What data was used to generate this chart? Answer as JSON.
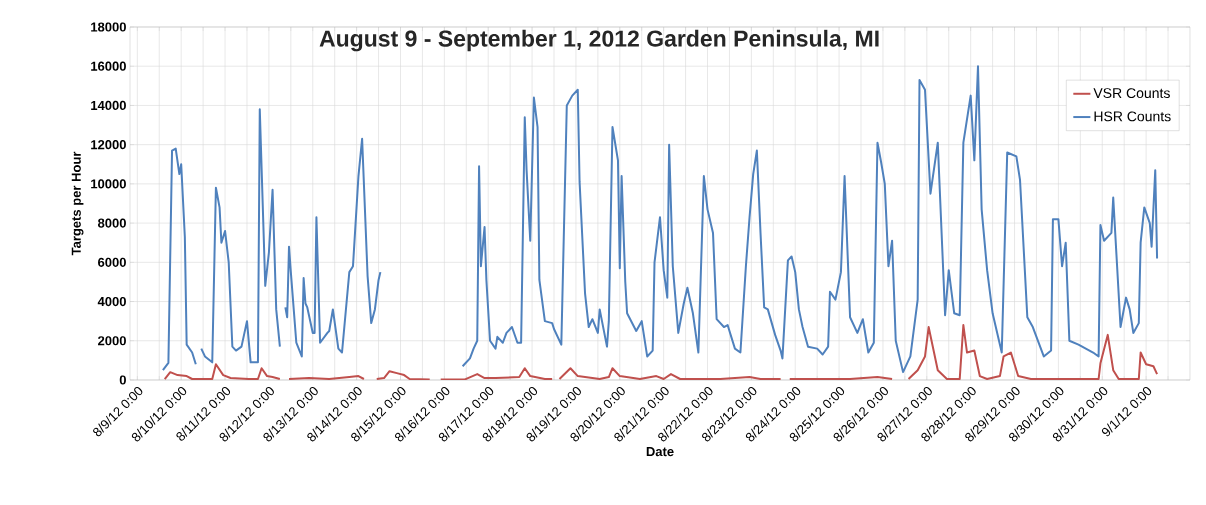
{
  "chart_data": {
    "type": "line",
    "title": "August 9 - September 1, 2012 Garden Peninsula, MI",
    "xlabel": "Date",
    "ylabel": "Targets per Hour",
    "xlim": [
      "2012-08-08T20:00",
      "2012-09-02T00:00"
    ],
    "ylim": [
      0,
      18000
    ],
    "yticks": [
      0,
      2000,
      4000,
      6000,
      8000,
      10000,
      12000,
      14000,
      16000,
      18000
    ],
    "xticks": [
      {
        "value": "2012-08-09T00:00",
        "label": "8/9/12 0:00"
      },
      {
        "value": "2012-08-09T12:00",
        "label": null
      },
      {
        "value": "2012-08-10T00:00",
        "label": "8/10/12 0:00"
      },
      {
        "value": "2012-08-10T12:00",
        "label": null
      },
      {
        "value": "2012-08-11T00:00",
        "label": "8/11/12 0:00"
      },
      {
        "value": "2012-08-11T12:00",
        "label": null
      },
      {
        "value": "2012-08-12T00:00",
        "label": "8/12/12 0:00"
      },
      {
        "value": "2012-08-12T12:00",
        "label": null
      },
      {
        "value": "2012-08-13T00:00",
        "label": "8/13/12 0:00"
      },
      {
        "value": "2012-08-13T12:00",
        "label": null
      },
      {
        "value": "2012-08-14T00:00",
        "label": "8/14/12 0:00"
      },
      {
        "value": "2012-08-14T12:00",
        "label": null
      },
      {
        "value": "2012-08-15T00:00",
        "label": "8/15/12 0:00"
      },
      {
        "value": "2012-08-15T12:00",
        "label": null
      },
      {
        "value": "2012-08-16T00:00",
        "label": "8/16/12 0:00"
      },
      {
        "value": "2012-08-16T12:00",
        "label": null
      },
      {
        "value": "2012-08-17T00:00",
        "label": "8/17/12 0:00"
      },
      {
        "value": "2012-08-17T12:00",
        "label": null
      },
      {
        "value": "2012-08-18T00:00",
        "label": "8/18/12 0:00"
      },
      {
        "value": "2012-08-18T12:00",
        "label": null
      },
      {
        "value": "2012-08-19T00:00",
        "label": "8/19/12 0:00"
      },
      {
        "value": "2012-08-19T12:00",
        "label": null
      },
      {
        "value": "2012-08-20T00:00",
        "label": "8/20/12 0:00"
      },
      {
        "value": "2012-08-20T12:00",
        "label": null
      },
      {
        "value": "2012-08-21T00:00",
        "label": "8/21/12 0:00"
      },
      {
        "value": "2012-08-21T12:00",
        "label": null
      },
      {
        "value": "2012-08-22T00:00",
        "label": "8/22/12 0:00"
      },
      {
        "value": "2012-08-22T12:00",
        "label": null
      },
      {
        "value": "2012-08-23T00:00",
        "label": "8/23/12 0:00"
      },
      {
        "value": "2012-08-23T12:00",
        "label": null
      },
      {
        "value": "2012-08-24T00:00",
        "label": "8/24/12 0:00"
      },
      {
        "value": "2012-08-24T12:00",
        "label": null
      },
      {
        "value": "2012-08-25T00:00",
        "label": "8/25/12 0:00"
      },
      {
        "value": "2012-08-25T12:00",
        "label": null
      },
      {
        "value": "2012-08-26T00:00",
        "label": "8/26/12 0:00"
      },
      {
        "value": "2012-08-26T12:00",
        "label": null
      },
      {
        "value": "2012-08-27T00:00",
        "label": "8/27/12 0:00"
      },
      {
        "value": "2012-08-27T12:00",
        "label": null
      },
      {
        "value": "2012-08-28T00:00",
        "label": "8/28/12 0:00"
      },
      {
        "value": "2012-08-28T12:00",
        "label": null
      },
      {
        "value": "2012-08-29T00:00",
        "label": "8/29/12 0:00"
      },
      {
        "value": "2012-08-29T12:00",
        "label": null
      },
      {
        "value": "2012-08-30T00:00",
        "label": "8/30/12 0:00"
      },
      {
        "value": "2012-08-30T12:00",
        "label": null
      },
      {
        "value": "2012-08-31T00:00",
        "label": "8/31/12 0:00"
      },
      {
        "value": "2012-08-31T12:00",
        "label": null
      },
      {
        "value": "2012-09-01T00:00",
        "label": "9/1/12 0:00"
      },
      {
        "value": "2012-09-01T12:00",
        "label": null
      }
    ],
    "grid": true,
    "legend": "top right",
    "marker": "none",
    "line_style": "solid",
    "series": [
      {
        "name": "VSR Counts",
        "color": "#c0504d",
        "x": [
          "2012-08-09T15:00",
          "2012-08-09T18:00",
          "2012-08-09T22:00",
          "2012-08-10T03:00",
          "2012-08-10T06:00",
          "2012-08-10T17:00",
          "2012-08-10T19:00",
          "2012-08-10T23:00",
          "2012-08-11T03:00",
          "2012-08-11T13:00",
          "2012-08-11T18:00",
          "2012-08-11T20:00",
          "2012-08-11T23:00",
          "2012-08-12T02:00",
          "2012-08-12T06:00",
          "2012-08-12T08:00",
          "2012-08-12T11:00",
          "2012-08-12T22:00",
          "2012-08-13T09:00",
          "2012-08-13T20:00",
          "2012-08-14T01:00",
          "2012-08-14T04:00",
          "2012-08-14T08:00",
          "2012-08-14T11:00",
          "2012-08-14T15:00",
          "2012-08-14T18:00",
          "2012-08-14T22:00",
          "2012-08-15T02:00",
          "2012-08-15T05:00",
          "2012-08-15T16:00",
          "2012-08-15T19:00",
          "2012-08-15T22:00",
          "2012-08-16T11:00",
          "2012-08-16T18:00",
          "2012-08-16T22:00",
          "2012-08-17T04:00",
          "2012-08-17T17:00",
          "2012-08-17T20:00",
          "2012-08-17T23:00",
          "2012-08-18T07:00",
          "2012-08-18T11:00",
          "2012-08-18T13:00",
          "2012-08-18T15:00",
          "2012-08-18T21:00",
          "2012-08-19T01:00",
          "2012-08-19T13:00",
          "2012-08-19T18:00",
          "2012-08-19T20:00",
          "2012-08-20T00:00",
          "2012-08-20T11:00",
          "2012-08-20T20:00",
          "2012-08-21T00:00",
          "2012-08-21T04:00",
          "2012-08-21T09:00",
          "2012-08-22T07:00",
          "2012-08-22T23:00",
          "2012-08-23T05:00",
          "2012-08-23T16:00",
          "2012-08-23T19:00",
          "2012-08-23T21:00",
          "2012-08-25T06:00",
          "2012-08-25T21:00",
          "2012-08-26T05:00",
          "2012-08-26T10:00",
          "2012-08-26T14:00",
          "2012-08-26T19:00",
          "2012-08-26T23:00",
          "2012-08-27T01:00",
          "2012-08-27T06:00",
          "2012-08-27T11:00",
          "2012-08-27T18:00",
          "2012-08-27T20:00",
          "2012-08-27T22:00",
          "2012-08-28T02:00",
          "2012-08-28T05:00",
          "2012-08-28T09:00",
          "2012-08-28T16:00",
          "2012-08-28T18:00",
          "2012-08-28T22:00",
          "2012-08-29T02:00",
          "2012-08-29T09:00",
          "2012-08-30T22:00",
          "2012-08-30T23:00",
          "2012-08-31T03:00",
          "2012-08-31T06:00",
          "2012-08-31T09:00",
          "2012-08-31T20:00",
          "2012-08-31T21:00",
          "2012-09-01T00:00",
          "2012-09-01T04:00",
          "2012-09-01T06:00"
        ],
        "values": [
          50,
          400,
          250,
          200,
          50,
          50,
          800,
          250,
          100,
          50,
          50,
          600,
          200,
          150,
          50,
          null,
          50,
          100,
          50,
          150,
          200,
          50,
          null,
          50,
          100,
          450,
          350,
          250,
          50,
          20,
          null,
          20,
          20,
          300,
          100,
          100,
          150,
          600,
          200,
          50,
          50,
          null,
          50,
          600,
          200,
          50,
          150,
          600,
          200,
          50,
          200,
          50,
          300,
          50,
          50,
          150,
          50,
          50,
          null,
          50,
          50,
          150,
          50,
          null,
          50,
          500,
          1200,
          2700,
          500,
          50,
          50,
          2800,
          1400,
          1500,
          200,
          50,
          200,
          1200,
          1400,
          200,
          50,
          50,
          850,
          2300,
          500,
          50,
          50,
          1400,
          800,
          700,
          300
        ]
      },
      {
        "name": "HSR Counts",
        "color": "#4f81bd",
        "x": [
          "2012-08-09T14:00",
          "2012-08-09T17:00",
          "2012-08-09T19:00",
          "2012-08-09T21:00",
          "2012-08-09T23:00",
          "2012-08-10T00:00",
          "2012-08-10T02:00",
          "2012-08-10T03:00",
          "2012-08-10T06:00",
          "2012-08-10T08:00",
          "2012-08-10T09:00",
          "2012-08-10T11:00",
          "2012-08-10T13:00",
          "2012-08-10T17:00",
          "2012-08-10T19:00",
          "2012-08-10T21:00",
          "2012-08-10T22:00",
          "2012-08-11T00:00",
          "2012-08-11T02:00",
          "2012-08-11T04:00",
          "2012-08-11T06:00",
          "2012-08-11T09:00",
          "2012-08-11T12:00",
          "2012-08-11T14:00",
          "2012-08-11T18:00",
          "2012-08-11T19:00",
          "2012-08-11T22:00",
          "2012-08-12T00:00",
          "2012-08-12T02:00",
          "2012-08-12T04:00",
          "2012-08-12T06:00",
          "2012-08-12T07:00",
          "2012-08-12T09:00",
          "2012-08-12T10:00",
          "2012-08-12T11:00",
          "2012-08-12T12:00",
          "2012-08-12T15:00",
          "2012-08-12T18:00",
          "2012-08-12T19:00",
          "2012-08-12T20:00",
          "2012-08-12T21:00",
          "2012-08-13T00:00",
          "2012-08-13T01:00",
          "2012-08-13T02:00",
          "2012-08-13T04:00",
          "2012-08-13T08:00",
          "2012-08-13T09:00",
          "2012-08-13T11:00",
          "2012-08-13T14:00",
          "2012-08-13T16:00",
          "2012-08-13T20:00",
          "2012-08-13T22:00",
          "2012-08-14T01:00",
          "2012-08-14T03:00",
          "2012-08-14T06:00",
          "2012-08-14T08:00",
          "2012-08-14T10:00",
          "2012-08-14T12:00",
          "2012-08-14T13:00",
          "2012-08-15T12:00",
          "2012-08-16T10:00",
          "2012-08-16T14:00",
          "2012-08-16T16:00",
          "2012-08-16T18:00",
          "2012-08-16T19:00",
          "2012-08-16T20:00",
          "2012-08-16T22:00",
          "2012-08-16T23:00",
          "2012-08-17T01:00",
          "2012-08-17T04:00",
          "2012-08-17T05:00",
          "2012-08-17T08:00",
          "2012-08-17T10:00",
          "2012-08-17T13:00",
          "2012-08-17T16:00",
          "2012-08-17T18:00",
          "2012-08-17T20:00",
          "2012-08-17T21:00",
          "2012-08-17T23:00",
          "2012-08-18T01:00",
          "2012-08-18T03:00",
          "2012-08-18T04:00",
          "2012-08-18T07:00",
          "2012-08-18T11:00",
          "2012-08-18T12:00",
          "2012-08-18T16:00",
          "2012-08-18T19:00",
          "2012-08-18T22:00",
          "2012-08-19T01:00",
          "2012-08-19T02:00",
          "2012-08-19T05:00",
          "2012-08-19T07:00",
          "2012-08-19T09:00",
          "2012-08-19T12:00",
          "2012-08-19T13:00",
          "2012-08-19T17:00",
          "2012-08-19T18:00",
          "2012-08-19T20:00",
          "2012-08-19T23:00",
          "2012-08-20T00:00",
          "2012-08-20T01:00",
          "2012-08-20T03:00",
          "2012-08-20T04:00",
          "2012-08-20T09:00",
          "2012-08-20T12:00",
          "2012-08-20T15:00",
          "2012-08-20T18:00",
          "2012-08-20T19:00",
          "2012-08-20T22:00",
          "2012-08-21T00:00",
          "2012-08-21T02:00",
          "2012-08-21T03:00",
          "2012-08-21T05:00",
          "2012-08-21T08:00",
          "2012-08-21T11:00",
          "2012-08-21T13:00",
          "2012-08-21T16:00",
          "2012-08-21T19:00",
          "2012-08-21T22:00",
          "2012-08-22T00:00",
          "2012-08-22T03:00",
          "2012-08-22T05:00",
          "2012-08-22T09:00",
          "2012-08-22T11:00",
          "2012-08-22T15:00",
          "2012-08-22T18:00",
          "2012-08-22T21:00",
          "2012-08-22T23:00",
          "2012-08-23T01:00",
          "2012-08-23T03:00",
          "2012-08-23T05:00",
          "2012-08-23T07:00",
          "2012-08-23T09:00",
          "2012-08-23T13:00",
          "2012-08-23T16:00",
          "2012-08-23T17:00",
          "2012-08-23T20:00",
          "2012-08-23T22:00",
          "2012-08-24T00:00",
          "2012-08-24T02:00",
          "2012-08-24T04:00",
          "2012-08-24T07:00",
          "2012-08-24T12:00",
          "2012-08-24T15:00",
          "2012-08-24T18:00",
          "2012-08-24T19:00",
          "2012-08-24T22:00",
          "2012-08-25T01:00",
          "2012-08-25T03:00",
          "2012-08-25T06:00",
          "2012-08-25T10:00",
          "2012-08-25T13:00",
          "2012-08-25T16:00",
          "2012-08-25T19:00",
          "2012-08-25T21:00",
          "2012-08-25T23:00",
          "2012-08-26T01:00",
          "2012-08-26T03:00",
          "2012-08-26T05:00",
          "2012-08-26T07:00",
          "2012-08-26T11:00",
          "2012-08-26T15:00",
          "2012-08-26T19:00",
          "2012-08-26T20:00",
          "2012-08-26T23:00",
          "2012-08-27T02:00",
          "2012-08-27T06:00",
          "2012-08-27T10:00",
          "2012-08-27T12:00",
          "2012-08-27T15:00",
          "2012-08-27T18:00",
          "2012-08-27T20:00",
          "2012-08-28T00:00",
          "2012-08-28T02:00",
          "2012-08-28T04:00",
          "2012-08-28T06:00",
          "2012-08-28T09:00",
          "2012-08-28T12:00",
          "2012-08-28T17:00",
          "2012-08-28T20:00",
          "2012-08-29T01:00",
          "2012-08-29T03:00",
          "2012-08-29T07:00",
          "2012-08-29T10:00",
          "2012-08-29T16:00",
          "2012-08-29T20:00",
          "2012-08-29T21:00",
          "2012-08-30T00:00",
          "2012-08-30T02:00",
          "2012-08-30T04:00",
          "2012-08-30T06:00",
          "2012-08-30T11:00",
          "2012-08-30T19:00",
          "2012-08-30T22:00",
          "2012-08-30T23:00",
          "2012-08-31T01:00",
          "2012-08-31T05:00",
          "2012-08-31T06:00",
          "2012-08-31T10:00",
          "2012-08-31T13:00",
          "2012-08-31T15:00",
          "2012-08-31T17:00",
          "2012-08-31T20:00",
          "2012-08-31T21:00",
          "2012-08-31T23:00",
          "2012-09-01T02:00",
          "2012-09-01T03:00",
          "2012-09-01T05:00",
          "2012-09-01T06:00"
        ],
        "values": [
          500,
          870,
          11700,
          11800,
          10500,
          11000,
          7300,
          1800,
          1400,
          800,
          null,
          1600,
          1200,
          900,
          9800,
          8800,
          7000,
          7600,
          6000,
          1700,
          1500,
          1700,
          3000,
          900,
          900,
          13800,
          4800,
          6500,
          9700,
          3600,
          1700,
          null,
          3700,
          3200,
          6800,
          5500,
          1900,
          1200,
          5200,
          3900,
          3700,
          2400,
          2400,
          8300,
          1900,
          2400,
          2500,
          3600,
          1600,
          1400,
          5500,
          5800,
          10400,
          12300,
          5300,
          2900,
          3600,
          5100,
          5500,
          null,
          700,
          1100,
          1600,
          2000,
          10900,
          5800,
          7800,
          5100,
          2000,
          1600,
          2200,
          1900,
          2400,
          2700,
          1900,
          1900,
          13400,
          10700,
          7100,
          14400,
          12900,
          5100,
          3000,
          2900,
          2600,
          1800,
          14000,
          14500,
          14800,
          10100,
          4400,
          2700,
          3100,
          2400,
          3600,
          1700,
          3000,
          12900,
          11200,
          5700,
          10400,
          5000,
          3400,
          2500,
          3000,
          1200,
          1500,
          6000,
          8300,
          5600,
          4200,
          12000,
          5800,
          2400,
          3900,
          4700,
          3400,
          1400,
          10400,
          8700,
          7500,
          3100,
          2700,
          2800,
          1600,
          1400,
          5800,
          8300,
          10500,
          11700,
          7500,
          3700,
          3600,
          2300,
          1500,
          1100,
          6100,
          6300,
          5500,
          3600,
          2700,
          1700,
          1600,
          1300,
          1700,
          4500,
          4100,
          5500,
          10400,
          3200,
          2400,
          3100,
          1400,
          1900,
          12100,
          11100,
          10000,
          5800,
          7100,
          2000,
          400,
          1200,
          4100,
          15300,
          14800,
          9500,
          12100,
          3300,
          5600,
          3400,
          3300,
          12100,
          14500,
          11200,
          16000,
          8700,
          5600,
          3400,
          1400,
          11600,
          11400,
          10200,
          3200,
          2700,
          1200,
          1500,
          8200,
          8200,
          5800,
          7000,
          2000,
          1800,
          1400,
          1200,
          7900,
          7100,
          7500,
          9300,
          2700,
          4200,
          3600,
          2400,
          2900,
          7000,
          8800,
          8000,
          6800,
          10700,
          6200
        ]
      }
    ]
  }
}
